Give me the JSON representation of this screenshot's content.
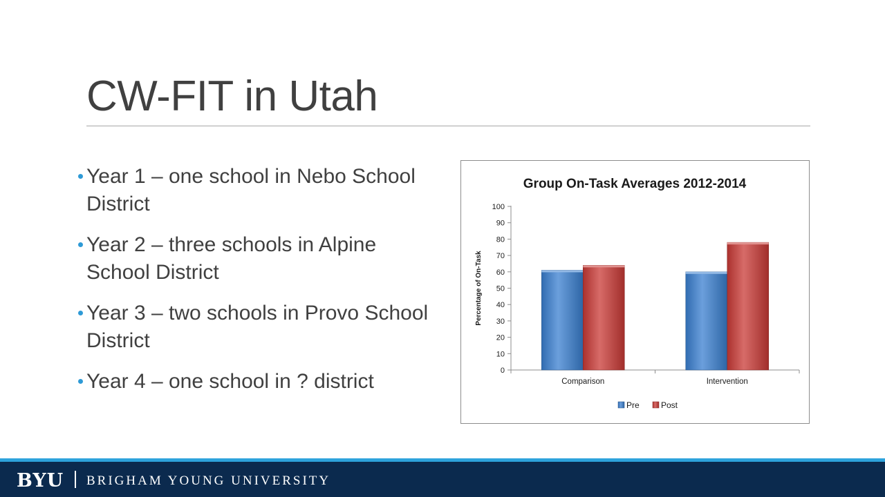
{
  "slide": {
    "title": "CW-FIT in Utah",
    "bullets": [
      "Year 1 – one school in Nebo School District",
      "Year 2 – three schools in Alpine School District",
      "Year 3 – two schools in Provo School District",
      "Year 4 – one school in ? district"
    ]
  },
  "chart_data": {
    "type": "bar",
    "title": "Group On-Task Averages 2012-2014",
    "xlabel": "",
    "ylabel": "Percentage of On-Task",
    "categories": [
      "Comparison",
      "Intervention"
    ],
    "series": [
      {
        "name": "Pre",
        "values": [
          61,
          60
        ],
        "color": "#3a7fd0"
      },
      {
        "name": "Post",
        "values": [
          64,
          78
        ],
        "color": "#c93a36"
      }
    ],
    "ylim": [
      0,
      100
    ],
    "yticks": [
      0,
      10,
      20,
      30,
      40,
      50,
      60,
      70,
      80,
      90,
      100
    ],
    "grid": false,
    "legend": "bottom"
  },
  "footer": {
    "logo": "BYU",
    "institution": "BRIGHAM YOUNG UNIVERSITY",
    "bar_color": "#0b2a4e",
    "accent_color": "#2ea3dc"
  }
}
